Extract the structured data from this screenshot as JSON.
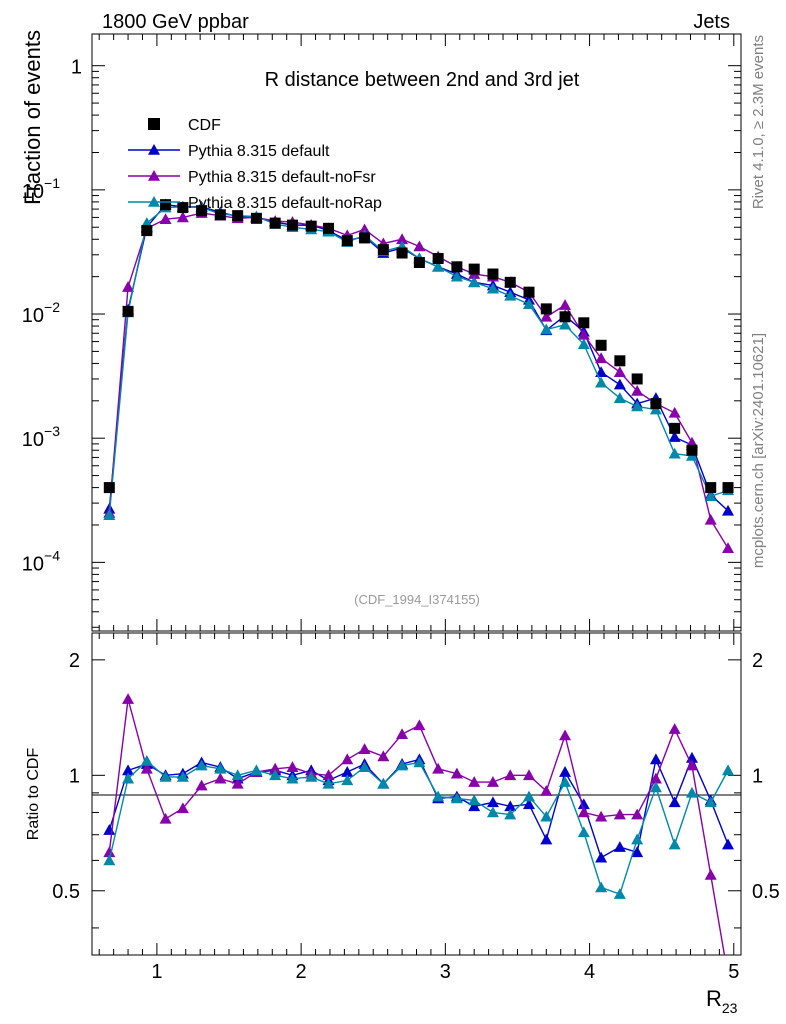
{
  "header": {
    "left": "1800 GeV ppbar",
    "right": "Jets"
  },
  "side_text": {
    "top": "Rivet 4.1.0, ≥ 2.3M events",
    "bottom": "mcplots.cern.ch [arXiv:2401.10621]"
  },
  "chart_data": {
    "type": "line",
    "title": "R distance between 2nd and 3rd jet",
    "watermark": "(CDF_1994_I374155)",
    "xlabel": "R",
    "xlabel_sub": "23",
    "ylabel": "Fraction of events",
    "ratio_ylabel": "Ratio to CDF",
    "xlim": [
      0.55,
      5.05
    ],
    "ylim": [
      2.8e-05,
      1.8
    ],
    "yscale": "log",
    "ratio_ylim": [
      0.34,
      2.35
    ],
    "x_ticks": [
      "1",
      "2",
      "3",
      "4",
      "5"
    ],
    "x_tick_values": [
      1,
      2,
      3,
      4,
      5
    ],
    "y_ticks": [
      {
        "base": "10",
        "exp": "−4",
        "value": 0.0001
      },
      {
        "base": "10",
        "exp": "−3",
        "value": 0.001
      },
      {
        "base": "10",
        "exp": "−2",
        "value": 0.01
      },
      {
        "base": "10",
        "exp": "−1",
        "value": 0.1
      },
      {
        "base": "1",
        "exp": "",
        "value": 1
      }
    ],
    "ratio_ticks": [
      {
        "label": "0.5",
        "value": 0.5
      },
      {
        "label": "1",
        "value": 1
      },
      {
        "label": "2",
        "value": 2
      }
    ],
    "legend_position": "top-left",
    "x": [
      0.67,
      0.8,
      0.93,
      1.06,
      1.18,
      1.31,
      1.44,
      1.56,
      1.69,
      1.82,
      1.94,
      2.07,
      2.19,
      2.32,
      2.44,
      2.57,
      2.7,
      2.82,
      2.95,
      3.08,
      3.2,
      3.33,
      3.45,
      3.58,
      3.7,
      3.83,
      3.96,
      4.08,
      4.21,
      4.33,
      4.46,
      4.59,
      4.71,
      4.84,
      4.96
    ],
    "data": {
      "name": "CDF",
      "color": "#000000",
      "values": [
        0.0004,
        0.0105,
        0.047,
        0.076,
        0.072,
        0.068,
        0.063,
        0.062,
        0.059,
        0.054,
        0.052,
        0.051,
        0.049,
        0.039,
        0.041,
        0.033,
        0.031,
        0.026,
        0.028,
        0.024,
        0.023,
        0.021,
        0.018,
        0.015,
        0.011,
        0.0095,
        0.0085,
        0.0056,
        0.0042,
        0.003,
        0.0019,
        0.0012,
        0.0008,
        0.0004,
        0.0004
      ]
    },
    "series": [
      {
        "name": "Pythia 8.315 default",
        "color": "#0000cc",
        "values": [
          0.00027,
          0.0108,
          0.05,
          0.076,
          0.073,
          0.073,
          0.066,
          0.061,
          0.06,
          0.055,
          0.052,
          0.052,
          0.047,
          0.039,
          0.042,
          0.031,
          0.034,
          0.028,
          0.024,
          0.021,
          0.018,
          0.017,
          0.015,
          0.013,
          0.0074,
          0.0097,
          0.0072,
          0.0034,
          0.0027,
          0.0019,
          0.0021,
          0.00102,
          0.00088,
          0.00035,
          0.00026
        ],
        "ratio": [
          0.72,
          1.03,
          1.07,
          1.0,
          1.01,
          1.08,
          1.05,
          0.98,
          1.02,
          1.03,
          1.0,
          1.03,
          0.97,
          1.02,
          1.07,
          0.95,
          1.07,
          1.1,
          0.87,
          0.88,
          0.83,
          0.85,
          0.83,
          0.84,
          0.68,
          1.02,
          0.84,
          0.61,
          0.65,
          0.63,
          1.1,
          0.85,
          1.11,
          0.86,
          0.66
        ]
      },
      {
        "name": "Pythia 8.315 default-noFsr",
        "color": "#8800aa",
        "values": [
          0.00025,
          0.0165,
          0.049,
          0.058,
          0.06,
          0.065,
          0.062,
          0.059,
          0.06,
          0.056,
          0.055,
          0.052,
          0.049,
          0.043,
          0.048,
          0.037,
          0.04,
          0.035,
          0.029,
          0.024,
          0.021,
          0.02,
          0.018,
          0.015,
          0.0095,
          0.0118,
          0.0068,
          0.0044,
          0.0034,
          0.0024,
          0.0019,
          0.0016,
          0.00092,
          0.00022,
          0.00013
        ],
        "ratio": [
          0.63,
          1.58,
          1.04,
          0.77,
          0.82,
          0.94,
          0.98,
          0.95,
          1.02,
          1.04,
          1.05,
          1.01,
          1.0,
          1.1,
          1.17,
          1.12,
          1.28,
          1.35,
          1.04,
          1.01,
          0.96,
          0.96,
          1.0,
          1.0,
          0.91,
          1.27,
          0.8,
          0.78,
          0.79,
          0.79,
          0.98,
          1.32,
          1.06,
          0.55,
          0.3
        ]
      },
      {
        "name": "Pythia 8.315 default-noRap",
        "color": "#0088aa",
        "values": [
          0.00024,
          0.0103,
          0.054,
          0.072,
          0.073,
          0.072,
          0.064,
          0.062,
          0.061,
          0.053,
          0.05,
          0.048,
          0.046,
          0.038,
          0.043,
          0.032,
          0.035,
          0.028,
          0.024,
          0.02,
          0.018,
          0.016,
          0.014,
          0.012,
          0.0075,
          0.0082,
          0.0057,
          0.0028,
          0.0021,
          0.0018,
          0.0017,
          0.00075,
          0.00072,
          0.00034,
          0.00038
        ],
        "ratio": [
          0.6,
          0.98,
          1.09,
          0.99,
          0.99,
          1.06,
          1.04,
          1.0,
          1.03,
          1.0,
          0.98,
          0.99,
          0.95,
          0.97,
          1.05,
          0.95,
          1.06,
          1.08,
          0.88,
          0.87,
          0.86,
          0.8,
          0.79,
          0.88,
          0.78,
          0.96,
          0.71,
          0.51,
          0.49,
          0.68,
          0.93,
          0.66,
          0.9,
          0.85,
          1.03
        ]
      }
    ]
  }
}
